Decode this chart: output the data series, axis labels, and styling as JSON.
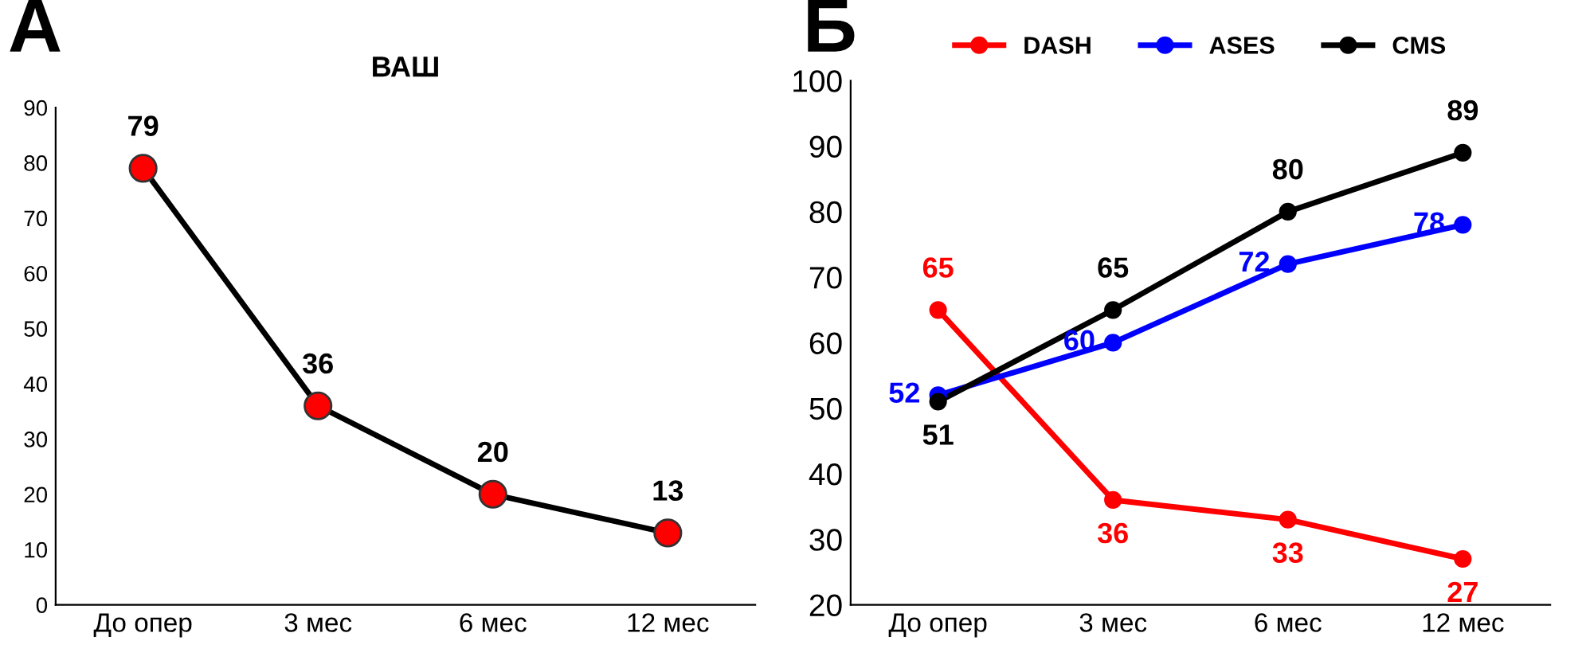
{
  "chart_data": [
    {
      "type": "line",
      "title": "ВАШ",
      "annotations": [
        "А"
      ],
      "categories": [
        "До опер",
        "3 мес",
        "6 мес",
        "12 мес"
      ],
      "series": [
        {
          "color": "#000000",
          "colors": [
            "#ff0000",
            "#ff0000",
            "#ff0000",
            "#ff0000"
          ],
          "values": [
            79,
            36,
            20,
            13
          ]
        }
      ],
      "ylim": [
        0,
        90
      ],
      "yticks": [
        0,
        10,
        20,
        30,
        40,
        50,
        60,
        70,
        80,
        90
      ],
      "data_labels": true,
      "marker": "circle",
      "grid": false,
      "legend": false
    },
    {
      "type": "line",
      "annotations": [
        "Б"
      ],
      "categories": [
        "До опер",
        "3 мес",
        "6 мес",
        "12 мес"
      ],
      "series": [
        {
          "name": "DASH",
          "color": "#ff0000",
          "values": [
            65,
            36,
            33,
            27
          ]
        },
        {
          "name": "ASES",
          "color": "#0000ff",
          "values": [
            52,
            60,
            72,
            78
          ]
        },
        {
          "name": "CMS",
          "color": "#000000",
          "values": [
            51,
            65,
            80,
            89
          ]
        }
      ],
      "ylim": [
        20,
        100
      ],
      "yticks": [
        20,
        30,
        40,
        50,
        60,
        70,
        80,
        90,
        100
      ],
      "data_labels": true,
      "marker": "circle",
      "grid": false,
      "legend": "top"
    }
  ]
}
